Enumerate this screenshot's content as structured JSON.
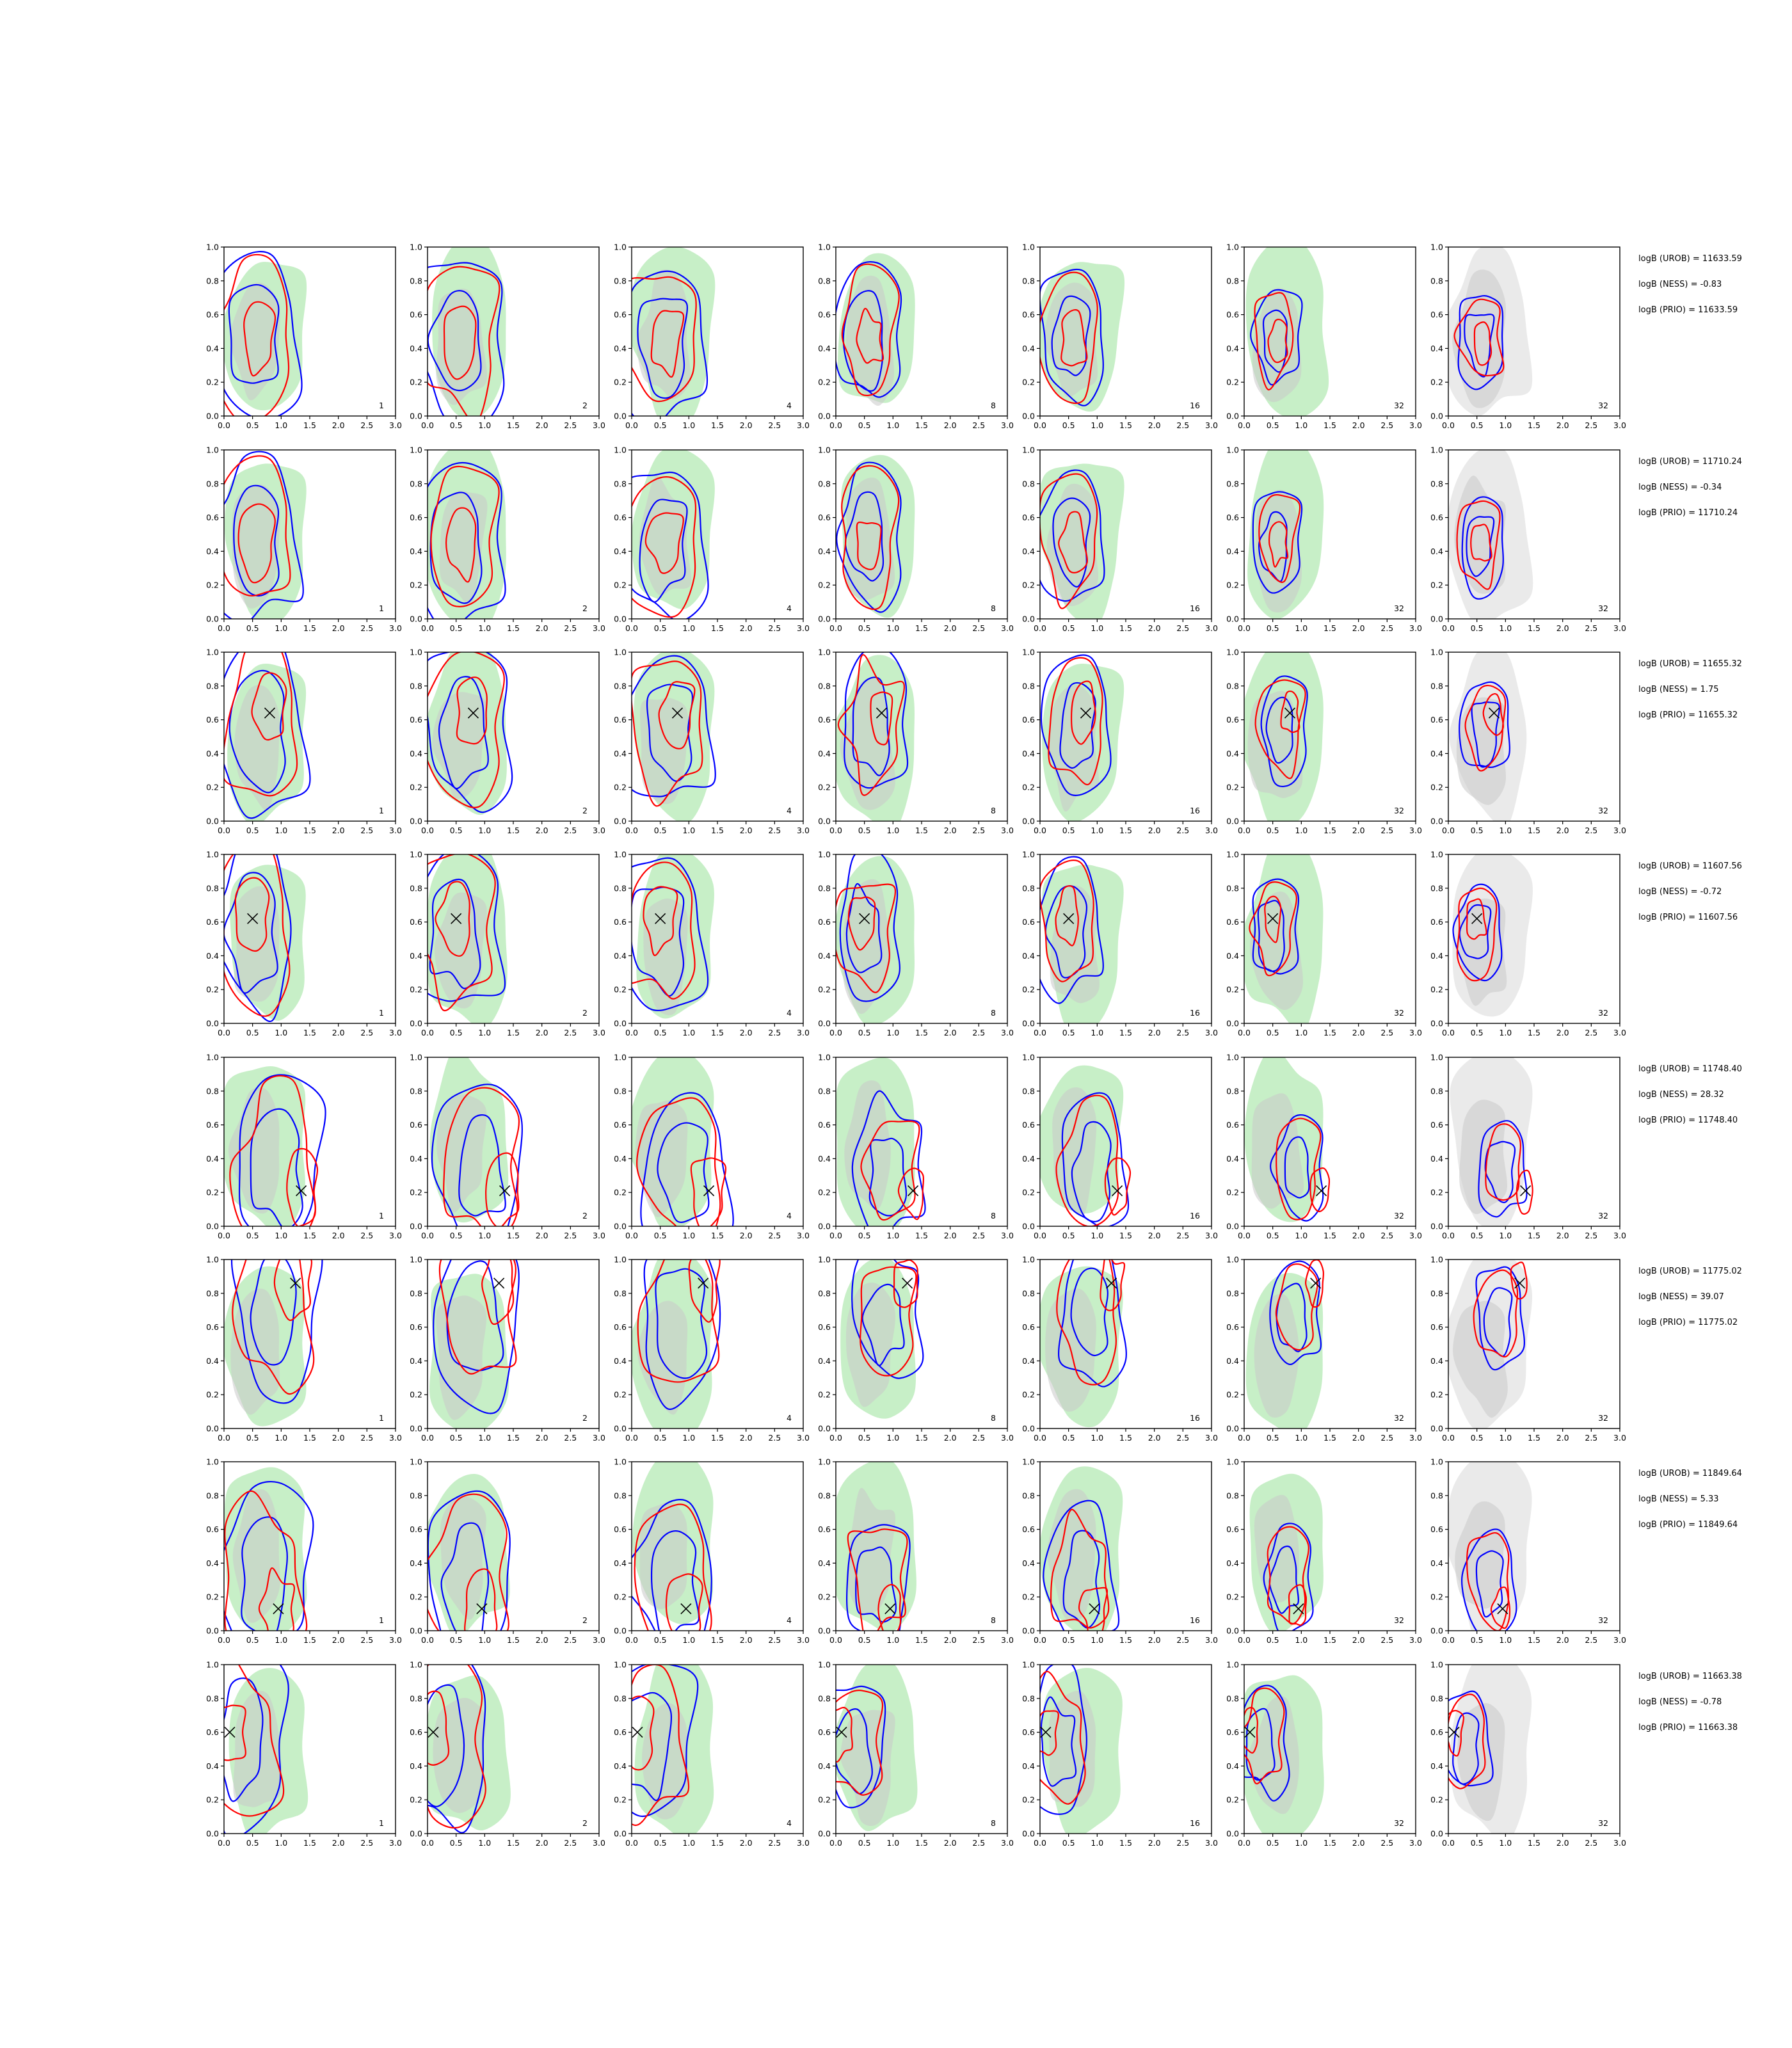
{
  "chart_data": {
    "type": "contour-grid",
    "description_colors": {
      "posterior_fill": "#90e090",
      "posterior_core": "#c8c8c8",
      "prior_fill": "#d8d8d8",
      "contour_a": "#0000ff",
      "contour_b": "#ff0000",
      "marker": "#000000"
    },
    "x_ticks": [
      "0.0",
      "0.5",
      "1.0",
      "1.5",
      "2.0",
      "2.5",
      "3.0"
    ],
    "y_ticks": [
      "0.0",
      "0.2",
      "0.4",
      "0.6",
      "0.8",
      "1.0"
    ],
    "xlim": [
      0,
      3
    ],
    "ylim": [
      0,
      1
    ],
    "column_labels": [
      "1",
      "2",
      "4",
      "8",
      "16",
      "32",
      "32"
    ],
    "rows": [
      {
        "true_point": null,
        "logB_UROB": "logB (UROB) = 11633.59",
        "logB_NESS": "logB (NESS) = -0.83",
        "logB_PRIO": "logB (PRIO) = 11633.59"
      },
      {
        "true_point": null,
        "logB_UROB": "logB (UROB) = 11710.24",
        "logB_NESS": "logB (NESS) = -0.34",
        "logB_PRIO": "logB (PRIO) = 11710.24"
      },
      {
        "true_point": [
          0.8,
          0.64
        ],
        "logB_UROB": "logB (UROB) = 11655.32",
        "logB_NESS": "logB (NESS) = 1.75",
        "logB_PRIO": "logB (PRIO) = 11655.32"
      },
      {
        "true_point": [
          0.5,
          0.62
        ],
        "logB_UROB": "logB (UROB) = 11607.56",
        "logB_NESS": "logB (NESS) = -0.72",
        "logB_PRIO": "logB (PRIO) = 11607.56"
      },
      {
        "true_point": [
          1.35,
          0.21
        ],
        "logB_UROB": "logB (UROB) = 11748.40",
        "logB_NESS": "logB (NESS) = 28.32",
        "logB_PRIO": "logB (PRIO) = 11748.40"
      },
      {
        "true_point": [
          1.25,
          0.86
        ],
        "logB_UROB": "logB (UROB) = 11775.02",
        "logB_NESS": "logB (NESS) = 39.07",
        "logB_PRIO": "logB (PRIO) = 11775.02"
      },
      {
        "true_point": [
          0.95,
          0.13
        ],
        "logB_UROB": "logB (UROB) = 11849.64",
        "logB_NESS": "logB (NESS) = 5.33",
        "logB_PRIO": "logB (PRIO) = 11849.64"
      },
      {
        "true_point": [
          0.1,
          0.6
        ],
        "logB_UROB": "logB (UROB) = 11663.38",
        "logB_NESS": "logB (NESS) = -0.78",
        "logB_PRIO": "logB (PRIO) = 11663.38"
      }
    ]
  }
}
